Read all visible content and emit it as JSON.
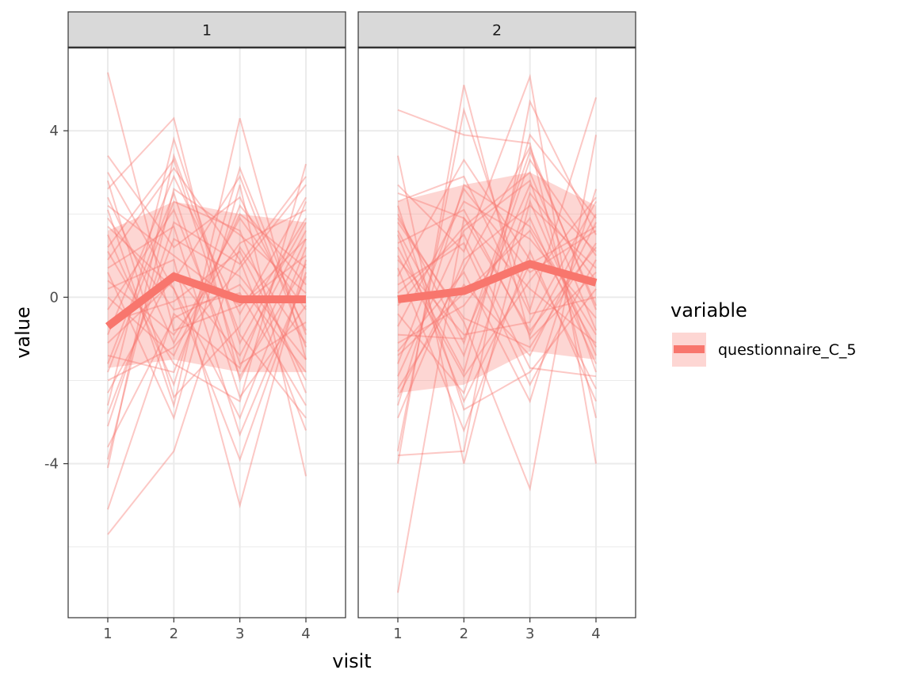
{
  "chart_data": {
    "type": "line",
    "facet_var": "",
    "facets": [
      "1",
      "2"
    ],
    "xlabel": "visit",
    "ylabel": "value",
    "x": [
      1,
      2,
      3,
      4
    ],
    "x_ticks": [
      "1",
      "2",
      "3",
      "4"
    ],
    "xlim": [
      0.4,
      4.6
    ],
    "ylim": [
      -7.7,
      6.0
    ],
    "y_ticks": [
      -4,
      0,
      4
    ],
    "y_tick_labels": [
      "-4",
      "0",
      "4"
    ],
    "grid": true,
    "legend": {
      "title": "variable",
      "entries": [
        "questionnaire_C_5"
      ],
      "placement": "right"
    },
    "colors": {
      "series": "#F8766D",
      "strip_bg": "#D9D9D9",
      "grid": "#EBEBEB",
      "panel_border": "#333333"
    },
    "series": [
      {
        "name": "questionnaire_C_5",
        "panels": [
          {
            "facet": "1",
            "mean": [
              -0.7,
              0.5,
              -0.05,
              -0.05
            ],
            "ribbon_lower": [
              -1.7,
              -1.5,
              -1.8,
              -1.8
            ],
            "ribbon_upper": [
              1.6,
              2.3,
              2.0,
              1.8
            ],
            "subjects": [
              [
                5.4,
                -0.8,
                -0.2,
                1.0
              ],
              [
                -5.7,
                -3.7,
                1.2,
                -1.1
              ],
              [
                -5.1,
                -0.4,
                -1.7,
                2.3
              ],
              [
                3.4,
                1.2,
                2.4,
                -0.8
              ],
              [
                2.6,
                4.3,
                -2.0,
                1.4
              ],
              [
                -4.1,
                3.4,
                -0.9,
                -2.9
              ],
              [
                2.1,
                -2.6,
                4.3,
                -1.5
              ],
              [
                1.7,
                0.2,
                -3.9,
                0.6
              ],
              [
                -3.1,
                1.8,
                0.8,
                2.9
              ],
              [
                0.6,
                -2.9,
                2.7,
                -4.3
              ],
              [
                -2.6,
                3.8,
                -1.1,
                1.8
              ],
              [
                1.1,
                -1.6,
                -2.5,
                3.2
              ],
              [
                -1.8,
                2.3,
                1.6,
                -2.3
              ],
              [
                0.2,
                0.9,
                -5.0,
                0.9
              ],
              [
                -3.6,
                -0.5,
                0.3,
                -1.8
              ],
              [
                2.4,
                -1.1,
                1.9,
                -0.3
              ],
              [
                -0.9,
                2.9,
                -0.4,
                2.4
              ],
              [
                1.5,
                -2.1,
                3.1,
                -0.9
              ],
              [
                -2.3,
                0.6,
                -1.4,
                1.6
              ],
              [
                0.9,
                3.1,
                0.9,
                -3.2
              ],
              [
                -1.4,
                -1.8,
                2.2,
                0.3
              ],
              [
                3.0,
                0.2,
                -2.9,
                1.2
              ],
              [
                -2.8,
                1.4,
                0.5,
                -1.5
              ],
              [
                0.4,
                -0.9,
                1.3,
                2.1
              ],
              [
                -0.3,
                2.1,
                -1.9,
                0.8
              ],
              [
                1.9,
                -0.3,
                0.1,
                -2.6
              ],
              [
                -3.9,
                2.6,
                1.5,
                0.1
              ],
              [
                2.8,
                -2.4,
                -0.7,
                1.9
              ],
              [
                -1.1,
                0.4,
                2.9,
                -1.2
              ],
              [
                0.7,
                1.7,
                -3.3,
                0.5
              ],
              [
                -2.0,
                -1.2,
                0.7,
                2.7
              ],
              [
                1.2,
                3.3,
                -1.6,
                -0.6
              ],
              [
                -0.6,
                -0.1,
                1.1,
                -2.0
              ],
              [
                2.2,
                1.0,
                -0.2,
                1.4
              ],
              [
                -1.6,
                2.5,
                -2.4,
                -0.2
              ],
              [
                0.0,
                -1.4,
                2.0,
                0.7
              ]
            ]
          },
          {
            "facet": "2",
            "mean": [
              -0.05,
              0.15,
              0.8,
              0.35
            ],
            "ribbon_lower": [
              -2.3,
              -2.1,
              -1.3,
              -1.5
            ],
            "ribbon_upper": [
              2.3,
              2.7,
              3.0,
              2.2
            ],
            "subjects": [
              [
                -7.1,
                1.9,
                -0.8,
                1.2
              ],
              [
                4.5,
                3.9,
                3.7,
                -2.9
              ],
              [
                -4.0,
                5.1,
                -1.0,
                0.6
              ],
              [
                3.4,
                -4.0,
                2.3,
                -1.4
              ],
              [
                2.7,
                1.1,
                5.3,
                -4.0
              ],
              [
                -3.7,
                4.5,
                -0.3,
                4.8
              ],
              [
                -3.8,
                -3.7,
                4.7,
                1.5
              ],
              [
                1.9,
                -0.6,
                -4.6,
                3.9
              ],
              [
                -2.6,
                2.7,
                1.7,
                -0.9
              ],
              [
                1.2,
                -1.8,
                3.9,
                1.9
              ],
              [
                -1.3,
                0.6,
                -2.5,
                2.6
              ],
              [
                0.5,
                3.3,
                0.9,
                -2.2
              ],
              [
                2.2,
                -2.7,
                -1.8,
                0.2
              ],
              [
                -1.9,
                1.6,
                2.8,
                -1.8
              ],
              [
                0.9,
                -0.9,
                -0.6,
                2.3
              ],
              [
                -0.7,
                2.3,
                1.4,
                -0.5
              ],
              [
                1.6,
                -1.4,
                3.3,
                1.0
              ],
              [
                -2.2,
                0.3,
                -1.4,
                1.8
              ],
              [
                2.5,
                1.9,
                0.2,
                -1.1
              ],
              [
                -0.4,
                -2.3,
                2.5,
                0.4
              ],
              [
                1.3,
                2.1,
                -0.9,
                2.0
              ],
              [
                -1.1,
                -0.2,
                1.9,
                -1.6
              ],
              [
                0.3,
                1.3,
                -2.1,
                0.9
              ],
              [
                2.0,
                -1.1,
                3.5,
                -0.2
              ],
              [
                -1.6,
                2.6,
                0.6,
                1.6
              ],
              [
                0.7,
                -3.2,
                1.1,
                -2.5
              ],
              [
                -2.9,
                0.9,
                2.2,
                0.7
              ],
              [
                1.8,
                -0.5,
                -1.2,
                1.3
              ],
              [
                -0.2,
                1.7,
                3.0,
                -0.8
              ],
              [
                1.0,
                -1.9,
                0.4,
                2.4
              ],
              [
                -1.4,
                0.1,
                1.6,
                -1.2
              ],
              [
                2.3,
                2.9,
                -0.4,
                0.0
              ],
              [
                -0.9,
                -1.0,
                2.7,
                1.1
              ],
              [
                0.1,
                1.5,
                -1.7,
                -1.9
              ],
              [
                1.5,
                -2.5,
                0.8,
                1.7
              ],
              [
                -2.4,
                0.7,
                3.6,
                -0.3
              ]
            ]
          }
        ]
      }
    ]
  }
}
